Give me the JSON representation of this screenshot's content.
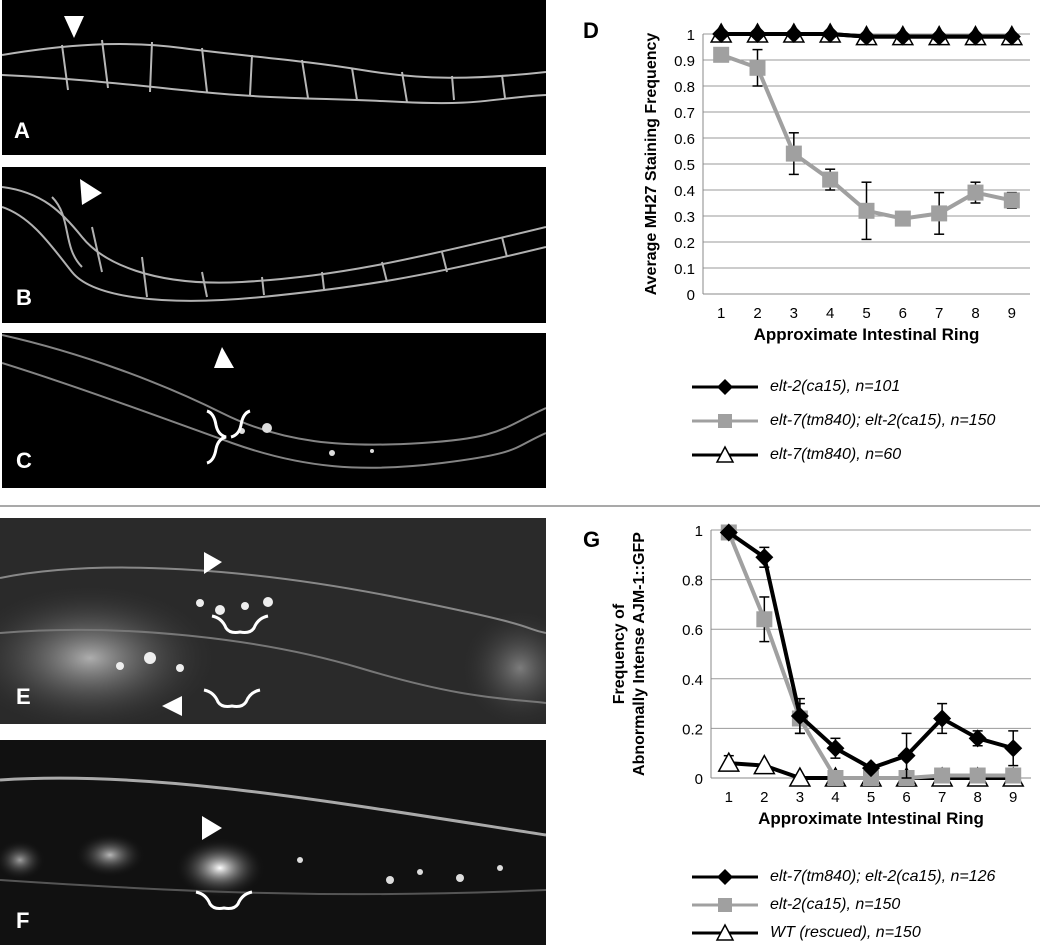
{
  "panels": {
    "A": "A",
    "B": "B",
    "C": "C",
    "D": "D",
    "E": "E",
    "F": "F",
    "G": "G"
  },
  "chart_data": [
    {
      "panel": "D",
      "type": "line",
      "xlabel": "Approximate Intestinal Ring",
      "ylabel": "Average MH27 Staining Frequency",
      "x": [
        1,
        2,
        3,
        4,
        5,
        6,
        7,
        8,
        9
      ],
      "xticks": [
        "1",
        "2",
        "3",
        "4",
        "5",
        "6",
        "7",
        "8",
        "9"
      ],
      "yticks": [
        "0",
        "0.1",
        "0.2",
        "0.3",
        "0.4",
        "0.5",
        "0.6",
        "0.7",
        "0.8",
        "0.9",
        "1"
      ],
      "ylim": [
        0,
        1
      ],
      "grid": true,
      "legend_position": "bottom",
      "series": [
        {
          "name": "elt-2(ca15), n=101",
          "color": "#000000",
          "marker": "diamond",
          "values": [
            1,
            1,
            1,
            1,
            0.99,
            0.99,
            0.99,
            0.99,
            0.99
          ],
          "errors": [
            0,
            0,
            0,
            0,
            0,
            0,
            0,
            0,
            0
          ]
        },
        {
          "name": "elt-7(tm840); elt-2(ca15), n=150",
          "color": "#a0a0a0",
          "marker": "square",
          "values": [
            0.92,
            0.87,
            0.54,
            0.44,
            0.32,
            0.29,
            0.31,
            0.39,
            0.36
          ],
          "errors": [
            0.02,
            0.07,
            0.08,
            0.04,
            0.11,
            0.01,
            0.08,
            0.04,
            0.03
          ]
        },
        {
          "name": "elt-7(tm840), n=60",
          "color": "#000000",
          "marker": "triangle",
          "values": [
            1,
            1,
            1,
            1,
            0.99,
            0.99,
            0.99,
            0.99,
            0.99
          ],
          "errors": [
            0,
            0,
            0,
            0,
            0,
            0,
            0,
            0,
            0
          ]
        }
      ]
    },
    {
      "panel": "G",
      "type": "line",
      "xlabel": "Approximate Intestinal Ring",
      "ylabel": "Frequency of Abnormally Intense AJM-1::GFP",
      "ylabel_lines": [
        "Frequency of",
        "Abnormally Intense AJM-1::GFP"
      ],
      "x": [
        1,
        2,
        3,
        4,
        5,
        6,
        7,
        8,
        9
      ],
      "xticks": [
        "1",
        "2",
        "3",
        "4",
        "5",
        "6",
        "7",
        "8",
        "9"
      ],
      "yticks": [
        "0",
        "0.2",
        "0.4",
        "0.6",
        "0.8",
        "1"
      ],
      "ylim": [
        0,
        1
      ],
      "grid": true,
      "legend_position": "bottom",
      "series": [
        {
          "name": "elt-7(tm840); elt-2(ca15), n=126",
          "color": "#000000",
          "marker": "diamond",
          "values": [
            0.99,
            0.89,
            0.25,
            0.12,
            0.04,
            0.09,
            0.24,
            0.16,
            0.12
          ],
          "errors": [
            0,
            0.04,
            0.07,
            0.04,
            0.01,
            0.09,
            0.06,
            0.03,
            0.07
          ]
        },
        {
          "name": "elt-2(ca15), n=150",
          "color": "#a0a0a0",
          "marker": "square",
          "values": [
            0.99,
            0.64,
            0.24,
            0.0,
            0.0,
            0.0,
            0.01,
            0.01,
            0.01
          ],
          "errors": [
            0,
            0.09,
            0.06,
            0,
            0,
            0,
            0,
            0,
            0
          ]
        },
        {
          "name": "WT (rescued), n=150",
          "color": "#000000",
          "marker": "triangle",
          "values": [
            0.06,
            0.05,
            0.0,
            0.0,
            0.0,
            0.0,
            0.0,
            0.0,
            0.0
          ],
          "errors": [
            0.03,
            0,
            0,
            0,
            0,
            0,
            0,
            0,
            0
          ]
        }
      ]
    }
  ]
}
